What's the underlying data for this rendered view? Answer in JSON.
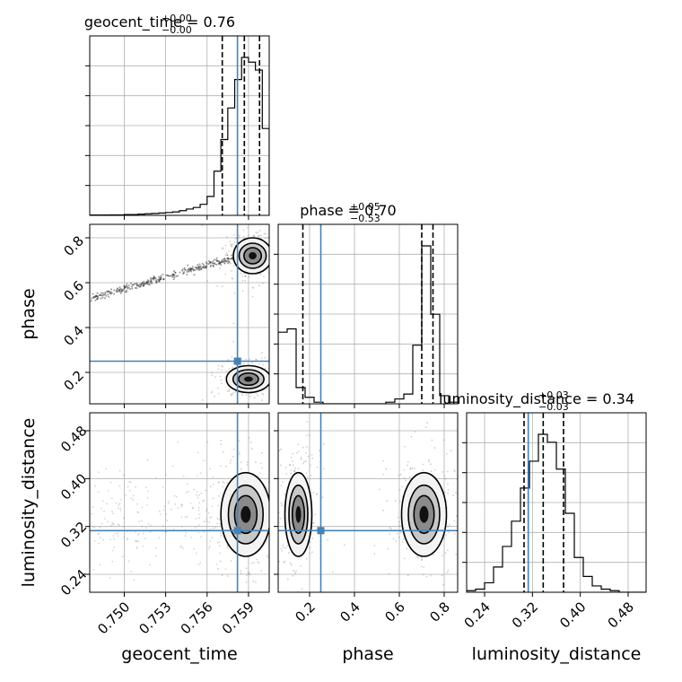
{
  "chart_data": {
    "type": "scatter",
    "kind": "corner plot",
    "parameters": [
      "geocent_time",
      "phase",
      "luminosity_distance"
    ],
    "axis_labels": {
      "geocent_time": "geocent_time",
      "phase": "phase",
      "luminosity_distance": "luminosity_distance"
    },
    "ranges": {
      "geocent_time": [
        0.7475,
        0.7605
      ],
      "phase": [
        0.06,
        0.86
      ],
      "luminosity_distance": [
        0.21,
        0.51
      ]
    },
    "ticks": {
      "geocent_time": [
        "0.750",
        "0.753",
        "0.756",
        "0.759"
      ],
      "phase": [
        "0.2",
        "0.4",
        "0.6",
        "0.8"
      ],
      "luminosity_distance": [
        "0.24",
        "0.32",
        "0.40",
        "0.48"
      ]
    },
    "tick_values": {
      "geocent_time": [
        0.75,
        0.753,
        0.756,
        0.759
      ],
      "phase": [
        0.2,
        0.4,
        0.6,
        0.8
      ],
      "luminosity_distance": [
        0.24,
        0.32,
        0.4,
        0.48
      ]
    },
    "truths": {
      "geocent_time": 0.7582,
      "phase": 0.25,
      "luminosity_distance": 0.313
    },
    "truth_color": "#4682b4",
    "titles": [
      {
        "param": "geocent_time",
        "text": "geocent_time = 0.76",
        "plus": "+0.00",
        "minus": "−0.00"
      },
      {
        "param": "phase",
        "text": "phase = 0.70",
        "plus": "+0.05",
        "minus": "−0.53"
      },
      {
        "param": "luminosity_distance",
        "text": "luminosity_distance = 0.34",
        "plus": "+0.03",
        "minus": "−0.03"
      }
    ],
    "quantiles": {
      "geocent_time": [
        0.7571,
        0.7587,
        0.7598
      ],
      "phase": [
        0.17,
        0.7,
        0.75
      ],
      "luminosity_distance": [
        0.306,
        0.338,
        0.372
      ]
    },
    "histograms": {
      "geocent_time": {
        "edges": [
          0.7475,
          0.748,
          0.7485,
          0.749,
          0.7495,
          0.75,
          0.7505,
          0.751,
          0.7515,
          0.752,
          0.7525,
          0.753,
          0.7535,
          0.754,
          0.7545,
          0.755,
          0.7555,
          0.756,
          0.7565,
          0.757,
          0.7575,
          0.758,
          0.7585,
          0.759,
          0.7595,
          0.76,
          0.7605
        ],
        "counts": [
          0.002,
          0.002,
          0.002,
          0.003,
          0.003,
          0.005,
          0.005,
          0.008,
          0.01,
          0.012,
          0.015,
          0.018,
          0.022,
          0.03,
          0.04,
          0.05,
          0.07,
          0.12,
          0.28,
          0.48,
          0.68,
          0.86,
          1.0,
          0.97,
          0.92,
          0.55
        ]
      },
      "phase": {
        "edges": [
          0.06,
          0.1,
          0.14,
          0.18,
          0.22,
          0.26,
          0.3,
          0.34,
          0.38,
          0.42,
          0.46,
          0.5,
          0.54,
          0.58,
          0.62,
          0.66,
          0.7,
          0.74,
          0.78,
          0.82,
          0.86
        ],
        "counts": [
          0.44,
          0.46,
          0.1,
          0.04,
          0.01,
          0.0,
          0.0,
          0.0,
          0.0,
          0.0,
          0.0,
          0.0,
          0.01,
          0.03,
          0.06,
          0.36,
          0.97,
          0.55,
          0.05,
          0.01
        ]
      },
      "luminosity_distance": {
        "edges": [
          0.21,
          0.225,
          0.24,
          0.255,
          0.27,
          0.285,
          0.3,
          0.315,
          0.33,
          0.345,
          0.36,
          0.375,
          0.39,
          0.405,
          0.42,
          0.435,
          0.45,
          0.465,
          0.48,
          0.495,
          0.51
        ],
        "counts": [
          0.01,
          0.02,
          0.06,
          0.16,
          0.29,
          0.45,
          0.66,
          0.83,
          1.0,
          0.95,
          0.78,
          0.5,
          0.22,
          0.1,
          0.04,
          0.02,
          0.01,
          0.0,
          0.0,
          0.0
        ]
      }
    },
    "density_peaks": [
      {
        "x": "geocent_time",
        "y": "phase",
        "peaks": [
          {
            "x": 0.7593,
            "y": 0.72,
            "sx": 0.0007,
            "sy": 0.04
          },
          {
            "x": 0.759,
            "y": 0.17,
            "sx": 0.0008,
            "sy": 0.03
          }
        ]
      },
      {
        "x": "geocent_time",
        "y": "luminosity_distance",
        "peaks": [
          {
            "x": 0.7588,
            "y": 0.34,
            "sx": 0.0009,
            "sy": 0.035
          }
        ]
      },
      {
        "x": "phase",
        "y": "luminosity_distance",
        "peaks": [
          {
            "x": 0.15,
            "y": 0.34,
            "sx": 0.03,
            "sy": 0.035
          },
          {
            "x": 0.71,
            "y": 0.34,
            "sx": 0.05,
            "sy": 0.035
          }
        ]
      }
    ],
    "grid": true,
    "legend": "none"
  }
}
